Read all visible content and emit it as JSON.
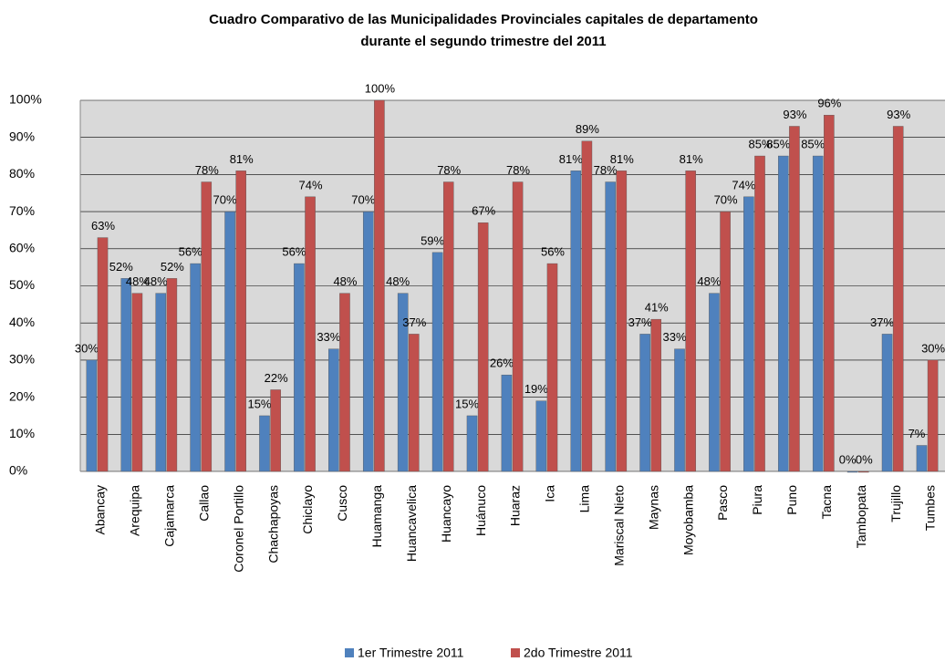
{
  "chart_data": {
    "type": "bar",
    "title": [
      "Cuadro Comparativo de las Municipalidades Provinciales capitales de departamento",
      "durante el  segundo trimestre del 2011"
    ],
    "categories": [
      "Abancay",
      "Arequipa",
      "Cajamarca",
      "Callao",
      "Coronel Portillo",
      "Chachapoyas",
      "Chiclayo",
      "Cusco",
      "Huamanga",
      "Huancavelica",
      "Huancayo",
      "Huánuco",
      "Huaraz",
      "Ica",
      "Lima",
      "Mariscal Nieto",
      "Maynas",
      "Moyobamba",
      "Pasco",
      "Piura",
      "Puno",
      "Tacna",
      "Tambopata",
      "Trujillo",
      "Tumbes"
    ],
    "series": [
      {
        "name": "1er Trimestre 2011",
        "color": "#4f81bd",
        "values": [
          30,
          52,
          48,
          56,
          70,
          15,
          56,
          33,
          70,
          48,
          59,
          15,
          26,
          19,
          81,
          78,
          37,
          33,
          48,
          74,
          85,
          85,
          0,
          37,
          7
        ],
        "value_labels": [
          "30%",
          "52%",
          "48%",
          "56%",
          "70%",
          "15%",
          "56%",
          "33%",
          "70%",
          "48%",
          "59%",
          "15%",
          "26%",
          "19%",
          "81%",
          "78%",
          "37%",
          "33%",
          "48%",
          "74%",
          "85%",
          "85%",
          "0%",
          "37%",
          "7%"
        ]
      },
      {
        "name": "2do Trimestre 2011",
        "color": "#c0504d",
        "values": [
          63,
          48,
          52,
          78,
          81,
          22,
          74,
          48,
          100,
          37,
          78,
          67,
          78,
          56,
          89,
          81,
          41,
          81,
          70,
          85,
          93,
          96,
          0,
          93,
          30
        ],
        "value_labels": [
          "63%",
          "48%",
          "52%",
          "78%",
          "81%",
          "22%",
          "74%",
          "48%",
          "100%",
          "37%",
          "78%",
          "67%",
          "78%",
          "56%",
          "89%",
          "81%",
          "41%",
          "81%",
          "70%",
          "85%",
          "93%",
          "96%",
          "0%",
          "93%",
          "30%"
        ]
      }
    ],
    "ylim": [
      0,
      100
    ],
    "yticks": [
      {
        "value": 0,
        "label": "0%"
      },
      {
        "value": 10,
        "label": "10%"
      },
      {
        "value": 20,
        "label": "20%"
      },
      {
        "value": 30,
        "label": "30%"
      },
      {
        "value": 40,
        "label": "40%"
      },
      {
        "value": 50,
        "label": "50%"
      },
      {
        "value": 60,
        "label": "60%"
      },
      {
        "value": 70,
        "label": "70%"
      },
      {
        "value": 80,
        "label": "80%"
      },
      {
        "value": 90,
        "label": "90%"
      },
      {
        "value": 100,
        "label": "100%"
      }
    ],
    "grid": true,
    "legend": "bottom"
  }
}
